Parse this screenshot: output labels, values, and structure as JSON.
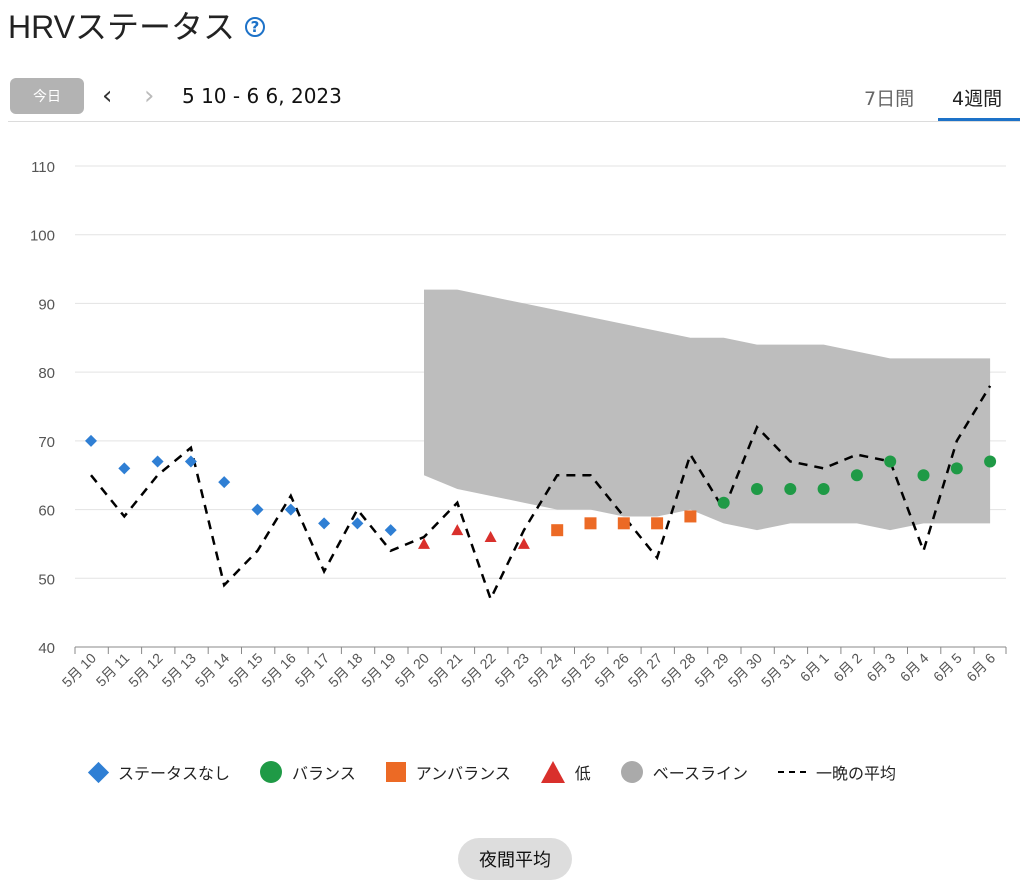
{
  "header": {
    "title": "HRVステータス",
    "help_icon": "question-circle-icon"
  },
  "toolbar": {
    "today_label": "今日",
    "date_range": "5 10 - 6 6, 2023",
    "tabs": [
      {
        "label": "7日間",
        "active": false
      },
      {
        "label": "4週間",
        "active": true
      }
    ]
  },
  "colors": {
    "accent": "#1d72c8",
    "no_status": "#2f7fd4",
    "balanced": "#1f9a46",
    "unbalanced": "#ec6a25",
    "low": "#d9302c",
    "baseline": "#bdbdbd"
  },
  "chart_data": {
    "type": "line",
    "ylim": [
      40,
      110
    ],
    "yticks": [
      40,
      50,
      60,
      70,
      80,
      90,
      100,
      110
    ],
    "categories": [
      "5月 10",
      "5月 11",
      "5月 12",
      "5月 13",
      "5月 14",
      "5月 15",
      "5月 16",
      "5月 17",
      "5月 18",
      "5月 19",
      "5月 20",
      "5月 21",
      "5月 22",
      "5月 23",
      "5月 24",
      "5月 25",
      "5月 26",
      "5月 27",
      "5月 28",
      "5月 29",
      "5月 30",
      "5月 31",
      "6月 1",
      "6月 2",
      "6月 3",
      "6月 4",
      "6月 5",
      "6月 6"
    ],
    "status_points": [
      {
        "status": "no_status",
        "value": 70
      },
      {
        "status": "no_status",
        "value": 66
      },
      {
        "status": "no_status",
        "value": 67
      },
      {
        "status": "no_status",
        "value": 67
      },
      {
        "status": "no_status",
        "value": 64
      },
      {
        "status": "no_status",
        "value": 60
      },
      {
        "status": "no_status",
        "value": 60
      },
      {
        "status": "no_status",
        "value": 58
      },
      {
        "status": "no_status",
        "value": 58
      },
      {
        "status": "no_status",
        "value": 57
      },
      {
        "status": "low",
        "value": 55
      },
      {
        "status": "low",
        "value": 57
      },
      {
        "status": "low",
        "value": 56
      },
      {
        "status": "low",
        "value": 55
      },
      {
        "status": "unbalanced",
        "value": 57
      },
      {
        "status": "unbalanced",
        "value": 58
      },
      {
        "status": "unbalanced",
        "value": 58
      },
      {
        "status": "unbalanced",
        "value": 58
      },
      {
        "status": "unbalanced",
        "value": 59
      },
      {
        "status": "balanced",
        "value": 61
      },
      {
        "status": "balanced",
        "value": 63
      },
      {
        "status": "balanced",
        "value": 63
      },
      {
        "status": "balanced",
        "value": 63
      },
      {
        "status": "balanced",
        "value": 65
      },
      {
        "status": "balanced",
        "value": 67
      },
      {
        "status": "balanced",
        "value": 65
      },
      {
        "status": "balanced",
        "value": 66
      },
      {
        "status": "balanced",
        "value": 67
      }
    ],
    "nightly_average": [
      65,
      59,
      65,
      69,
      49,
      54,
      62,
      51,
      60,
      54,
      56,
      61,
      47,
      57,
      65,
      65,
      59,
      53,
      68,
      60,
      72,
      67,
      66,
      68,
      67,
      54,
      70,
      78
    ],
    "baseline": {
      "start_index": 10,
      "upper": [
        92,
        92,
        91,
        90,
        89,
        88,
        87,
        86,
        85,
        85,
        84,
        84,
        84,
        83,
        82,
        82,
        82,
        82
      ],
      "lower": [
        65,
        63,
        62,
        61,
        60,
        60,
        59,
        59,
        60,
        58,
        57,
        58,
        58,
        58,
        57,
        58,
        58,
        58
      ]
    },
    "legend": [
      {
        "key": "no_status",
        "label": "ステータスなし"
      },
      {
        "key": "balanced",
        "label": "バランス"
      },
      {
        "key": "unbalanced",
        "label": "アンバランス"
      },
      {
        "key": "low",
        "label": "低"
      },
      {
        "key": "baseline",
        "label": "ベースライン"
      },
      {
        "key": "nightly",
        "label": "一晩の平均"
      }
    ]
  },
  "footer": {
    "average_button": "夜間平均"
  }
}
